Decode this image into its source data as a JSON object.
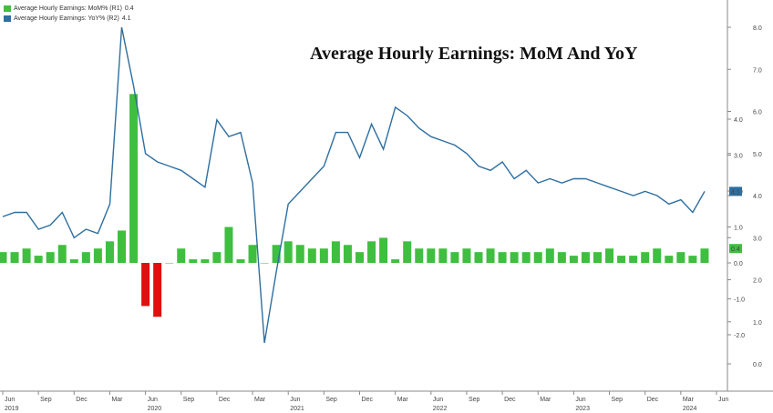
{
  "title": "Average Hourly Earnings: MoM And YoY",
  "legend": [
    {
      "label": "Average Hourly Earnings: MoM% (R1)",
      "value": "0.4",
      "color": "#3fbf3f"
    },
    {
      "label": "Average Hourly Earnings: YoY% (R2)",
      "value": "4.1",
      "color": "#2f6f9f"
    }
  ],
  "chart_data": {
    "type": "bar",
    "title": "Average Hourly Earnings: MoM And YoY",
    "x": [
      "2019-06",
      "2019-07",
      "2019-08",
      "2019-09",
      "2019-10",
      "2019-11",
      "2019-12",
      "2020-01",
      "2020-02",
      "2020-03",
      "2020-04",
      "2020-05",
      "2020-06",
      "2020-07",
      "2020-08",
      "2020-09",
      "2020-10",
      "2020-11",
      "2020-12",
      "2021-01",
      "2021-02",
      "2021-03",
      "2021-04",
      "2021-05",
      "2021-06",
      "2021-07",
      "2021-08",
      "2021-09",
      "2021-10",
      "2021-11",
      "2021-12",
      "2022-01",
      "2022-02",
      "2022-03",
      "2022-04",
      "2022-05",
      "2022-06",
      "2022-07",
      "2022-08",
      "2022-09",
      "2022-10",
      "2022-11",
      "2022-12",
      "2023-01",
      "2023-02",
      "2023-03",
      "2023-04",
      "2023-05",
      "2023-06",
      "2023-07",
      "2023-08",
      "2023-09",
      "2023-10",
      "2023-11",
      "2023-12",
      "2024-01",
      "2024-02",
      "2024-03",
      "2024-04",
      "2024-05"
    ],
    "series": [
      {
        "name": "Average Hourly Earnings: MoM% (R1)",
        "axis": "R1",
        "type": "bar",
        "values": [
          0.3,
          0.3,
          0.4,
          0.2,
          0.3,
          0.5,
          0.1,
          0.3,
          0.4,
          0.6,
          0.9,
          4.7,
          -1.2,
          -1.5,
          0.0,
          0.4,
          0.1,
          0.1,
          0.3,
          1.0,
          0.1,
          0.5,
          0.0,
          0.5,
          0.6,
          0.5,
          0.4,
          0.4,
          0.6,
          0.5,
          0.3,
          0.6,
          0.7,
          0.1,
          0.6,
          0.4,
          0.4,
          0.4,
          0.3,
          0.4,
          0.3,
          0.4,
          0.3,
          0.3,
          0.3,
          0.3,
          0.4,
          0.3,
          0.2,
          0.3,
          0.3,
          0.4,
          0.2,
          0.2,
          0.3,
          0.4,
          0.2,
          0.3,
          0.2,
          0.4
        ]
      },
      {
        "name": "Average Hourly Earnings: YoY% (R2)",
        "axis": "R2",
        "type": "line",
        "values": [
          3.5,
          3.6,
          3.6,
          3.2,
          3.3,
          3.6,
          3.0,
          3.2,
          3.1,
          3.8,
          8.0,
          6.6,
          5.0,
          4.8,
          4.7,
          4.6,
          4.4,
          4.2,
          5.8,
          5.4,
          5.5,
          4.3,
          0.5,
          2.2,
          3.8,
          4.1,
          4.4,
          4.7,
          5.5,
          5.5,
          4.9,
          5.7,
          5.1,
          6.1,
          5.9,
          5.6,
          5.4,
          5.3,
          5.2,
          5.0,
          4.7,
          4.6,
          4.8,
          4.4,
          4.6,
          4.3,
          4.4,
          4.3,
          4.4,
          4.4,
          4.3,
          4.2,
          4.1,
          4.0,
          4.1,
          4.0,
          3.8,
          3.9,
          3.6,
          4.1
        ]
      }
    ],
    "y_right_1": {
      "ticks": [
        "-2.0",
        "-1.0",
        "0.0",
        "1.0",
        "2.0",
        "3.0",
        "4.0"
      ],
      "range": [
        -2.5,
        4.1
      ]
    },
    "y_right_2": {
      "ticks": [
        "0.0",
        "1.0",
        "2.0",
        "3.0",
        "4.0",
        "5.0",
        "6.0",
        "7.0",
        "8.0"
      ],
      "range": [
        0.0,
        8.0
      ]
    },
    "x_ticks": [
      {
        "month": "Jun",
        "year": "2019"
      },
      {
        "month": "Sep"
      },
      {
        "month": "Dec"
      },
      {
        "month": "Mar"
      },
      {
        "month": "Jun",
        "year": "2020"
      },
      {
        "month": "Sep"
      },
      {
        "month": "Dec"
      },
      {
        "month": "Mar"
      },
      {
        "month": "Jun",
        "year": "2021"
      },
      {
        "month": "Sep"
      },
      {
        "month": "Dec"
      },
      {
        "month": "Mar"
      },
      {
        "month": "Jun",
        "year": "2022"
      },
      {
        "month": "Sep"
      },
      {
        "month": "Dec"
      },
      {
        "month": "Mar"
      },
      {
        "month": "Jun",
        "year": "2023"
      },
      {
        "month": "Sep"
      },
      {
        "month": "Dec"
      },
      {
        "month": "Mar",
        "year": "2024"
      },
      {
        "month": "Jun"
      }
    ],
    "last_labels": {
      "mom": "0.4",
      "yoy": "4.1"
    },
    "colors": {
      "positive_bar": "#3fbf3f",
      "negative_bar": "#e01010",
      "line": "#2f6f9f",
      "last_label_bg": "#2f6f9f"
    },
    "grid": true,
    "legend_position": "top-left"
  }
}
